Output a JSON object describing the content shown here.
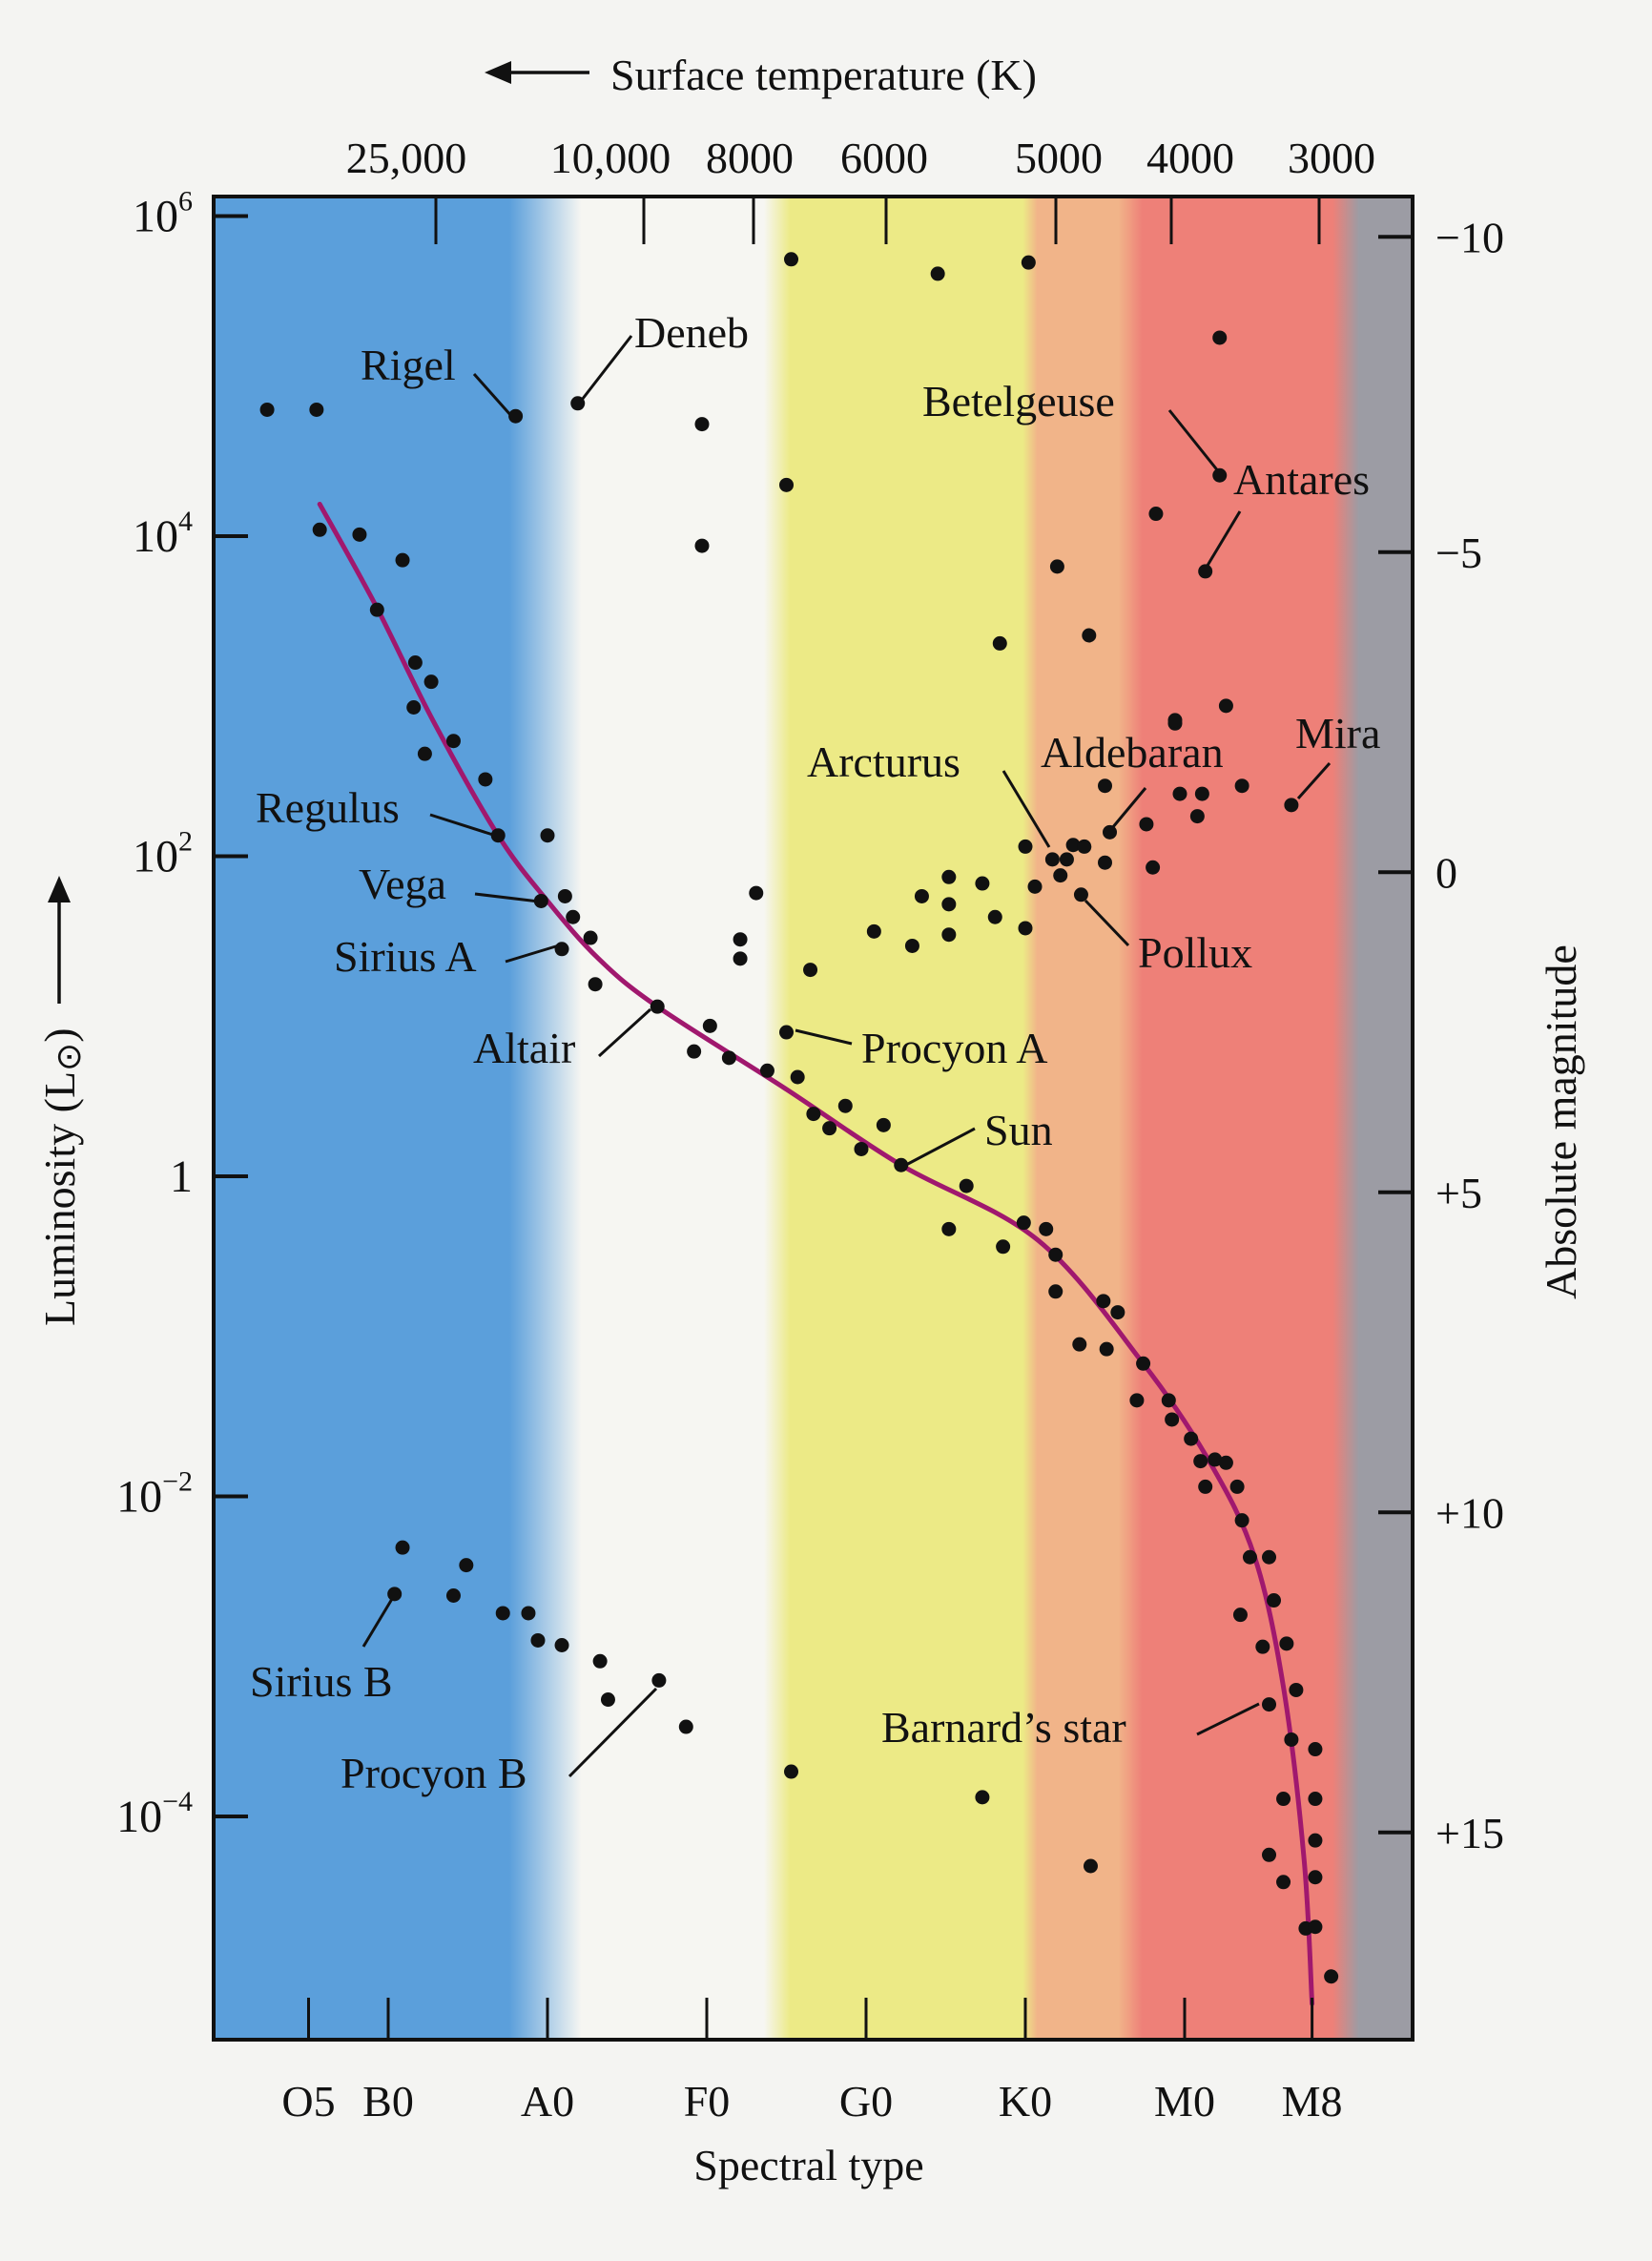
{
  "chart_data": {
    "type": "scatter",
    "title": "",
    "top_axis": {
      "label": "Surface temperature (K)",
      "arrow": "left-arrow",
      "ticks": [
        {
          "label": "25,000",
          "s": 28.2
        },
        {
          "label": "10,000",
          "s": 41.3
        },
        {
          "label": "8000",
          "s": 48.2
        },
        {
          "label": "6000",
          "s": 56.5
        },
        {
          "label": "5000",
          "s": 67.2
        },
        {
          "label": "4000",
          "s": 74.4
        },
        {
          "label": "3000",
          "s": 83.6
        }
      ]
    },
    "xlabel": "Spectral type",
    "x_ticks": [
      {
        "label": "O5",
        "s": 5
      },
      {
        "label": "B0",
        "s": 10
      },
      {
        "label": "A0",
        "s": 20
      },
      {
        "label": "F0",
        "s": 30
      },
      {
        "label": "G0",
        "s": 40
      },
      {
        "label": "K0",
        "s": 50
      },
      {
        "label": "M0",
        "s": 60
      },
      {
        "label": "M8",
        "s": 68
      }
    ],
    "xlim": [
      -1.9,
      73.5
    ],
    "ylabel": "Luminosity (L",
    "ylabel_symbol": "⊙",
    "ylabel_close": ")",
    "ylabel_arrow": "up-arrow",
    "y_scale": "log10",
    "ylim": [
      -5.4,
      6.13
    ],
    "y_ticks": [
      {
        "base": "10",
        "exp": "6",
        "log": 6
      },
      {
        "base": "10",
        "exp": "4",
        "log": 4
      },
      {
        "base": "10",
        "exp": "2",
        "log": 2
      },
      {
        "base": "1",
        "exp": "",
        "log": 0
      },
      {
        "base": "10",
        "exp": "−2",
        "log": -2
      },
      {
        "base": "10",
        "exp": "−4",
        "log": -4
      }
    ],
    "y2label": "Absolute magnitude",
    "y2_ticks": [
      {
        "label": "−10",
        "log": 5.9
      },
      {
        "label": "−5",
        "log": 3.9
      },
      {
        "label": "0",
        "log": 1.9
      },
      {
        "label": "+5",
        "log": -0.1
      },
      {
        "label": "+10",
        "log": -2.1
      },
      {
        "label": "+15",
        "log": -4.1
      }
    ],
    "color_bands": [
      {
        "from": -5.5,
        "to": 19.5,
        "color": "#5b9fdb"
      },
      {
        "from": 34.5,
        "to": 50.3,
        "color": "#ecea86"
      },
      {
        "from": 50.3,
        "to": 56.6,
        "color": "#f1b489"
      },
      {
        "from": 56.6,
        "to": 70.2,
        "color": "#ee8078"
      },
      {
        "from": 70.2,
        "to": 73.5,
        "color": "#9c9ca4"
      }
    ],
    "main_sequence_curve": [
      [
        5.7,
        4.2
      ],
      [
        9.2,
        3.57
      ],
      [
        12.8,
        2.85
      ],
      [
        16.9,
        2.13
      ],
      [
        20.0,
        1.72
      ],
      [
        23.2,
        1.36
      ],
      [
        26.9,
        1.06
      ],
      [
        34.9,
        0.55
      ],
      [
        42.2,
        0.07
      ],
      [
        50.8,
        -0.4
      ],
      [
        57.4,
        -1.17
      ],
      [
        61.6,
        -1.79
      ],
      [
        64.4,
        -2.38
      ],
      [
        66.2,
        -3.19
      ],
      [
        67.5,
        -4.27
      ],
      [
        68.0,
        -5.17
      ]
    ],
    "curve_color": "#a0186e",
    "points": [
      [
        2.4,
        4.79
      ],
      [
        5.5,
        4.79
      ],
      [
        18.0,
        4.75
      ],
      [
        21.9,
        4.83
      ],
      [
        29.7,
        4.7
      ],
      [
        35.3,
        5.73
      ],
      [
        44.5,
        5.64
      ],
      [
        50.2,
        5.71
      ],
      [
        62.2,
        5.24
      ],
      [
        35.0,
        4.32
      ],
      [
        62.2,
        4.38
      ],
      [
        29.7,
        3.94
      ],
      [
        58.2,
        4.14
      ],
      [
        61.3,
        3.78
      ],
      [
        52.0,
        3.81
      ],
      [
        48.4,
        3.33
      ],
      [
        54.0,
        3.38
      ],
      [
        59.4,
        2.83
      ],
      [
        62.6,
        2.94
      ],
      [
        5.7,
        4.04
      ],
      [
        8.2,
        4.01
      ],
      [
        10.9,
        3.85
      ],
      [
        9.3,
        3.54
      ],
      [
        11.7,
        3.21
      ],
      [
        12.7,
        3.09
      ],
      [
        11.6,
        2.93
      ],
      [
        12.3,
        2.64
      ],
      [
        14.1,
        2.72
      ],
      [
        16.1,
        2.48
      ],
      [
        16.9,
        2.13
      ],
      [
        20.0,
        2.13
      ],
      [
        19.6,
        1.72
      ],
      [
        21.1,
        1.75
      ],
      [
        21.6,
        1.62
      ],
      [
        22.7,
        1.49
      ],
      [
        20.9,
        1.42
      ],
      [
        23.0,
        1.2
      ],
      [
        26.9,
        1.06
      ],
      [
        30.2,
        0.94
      ],
      [
        29.2,
        0.78
      ],
      [
        31.4,
        0.74
      ],
      [
        33.8,
        0.66
      ],
      [
        35.0,
        0.9
      ],
      [
        35.7,
        0.62
      ],
      [
        36.7,
        0.39
      ],
      [
        37.7,
        0.3
      ],
      [
        38.7,
        0.44
      ],
      [
        39.7,
        0.17
      ],
      [
        41.1,
        0.32
      ],
      [
        42.2,
        0.07
      ],
      [
        46.3,
        -0.06
      ],
      [
        45.2,
        -0.33
      ],
      [
        48.6,
        -0.44
      ],
      [
        49.9,
        -0.29
      ],
      [
        51.3,
        -0.33
      ],
      [
        51.9,
        -0.49
      ],
      [
        51.9,
        -0.72
      ],
      [
        53.4,
        -1.05
      ],
      [
        54.9,
        -0.78
      ],
      [
        55.1,
        -1.08
      ],
      [
        55.8,
        -0.85
      ],
      [
        57.4,
        -1.17
      ],
      [
        57.0,
        -1.4
      ],
      [
        59.0,
        -1.4
      ],
      [
        59.2,
        -1.52
      ],
      [
        60.4,
        -1.64
      ],
      [
        61.0,
        -1.78
      ],
      [
        61.9,
        -1.77
      ],
      [
        61.3,
        -1.94
      ],
      [
        62.6,
        -1.79
      ],
      [
        63.3,
        -1.94
      ],
      [
        63.6,
        -2.15
      ],
      [
        64.1,
        -2.38
      ],
      [
        65.3,
        -2.38
      ],
      [
        63.5,
        -2.74
      ],
      [
        65.6,
        -2.65
      ],
      [
        64.9,
        -2.94
      ],
      [
        66.4,
        -2.92
      ],
      [
        67.0,
        -3.21
      ],
      [
        65.3,
        -3.3
      ],
      [
        66.7,
        -3.52
      ],
      [
        68.2,
        -3.58
      ],
      [
        66.2,
        -3.89
      ],
      [
        68.2,
        -3.89
      ],
      [
        68.2,
        -4.15
      ],
      [
        65.3,
        -4.24
      ],
      [
        68.2,
        -4.38
      ],
      [
        66.2,
        -4.41
      ],
      [
        67.6,
        -4.7
      ],
      [
        68.2,
        -4.69
      ],
      [
        69.2,
        -5.0
      ],
      [
        32.1,
        1.48
      ],
      [
        32.1,
        1.36
      ],
      [
        33.1,
        1.77
      ],
      [
        36.5,
        1.29
      ],
      [
        40.5,
        1.53
      ],
      [
        42.9,
        1.44
      ],
      [
        43.5,
        1.75
      ],
      [
        45.2,
        1.87
      ],
      [
        45.2,
        1.7
      ],
      [
        45.2,
        1.51
      ],
      [
        47.3,
        1.83
      ],
      [
        48.1,
        1.62
      ],
      [
        50.0,
        1.55
      ],
      [
        50.6,
        1.81
      ],
      [
        50.0,
        2.06
      ],
      [
        51.7,
        1.98
      ],
      [
        52.6,
        1.98
      ],
      [
        52.2,
        1.88
      ],
      [
        53.0,
        2.07
      ],
      [
        53.5,
        1.76
      ],
      [
        53.7,
        2.06
      ],
      [
        55.0,
        1.96
      ],
      [
        55.3,
        2.15
      ],
      [
        55.0,
        2.44
      ],
      [
        57.6,
        2.2
      ],
      [
        58.0,
        1.93
      ],
      [
        59.4,
        2.85
      ],
      [
        59.7,
        2.39
      ],
      [
        60.8,
        2.25
      ],
      [
        61.1,
        2.39
      ],
      [
        63.6,
        2.44
      ],
      [
        66.7,
        2.32
      ],
      [
        10.9,
        -2.32
      ],
      [
        10.4,
        -2.61
      ],
      [
        14.9,
        -2.43
      ],
      [
        14.1,
        -2.62
      ],
      [
        17.2,
        -2.73
      ],
      [
        18.8,
        -2.73
      ],
      [
        19.4,
        -2.9
      ],
      [
        20.9,
        -2.93
      ],
      [
        23.3,
        -3.03
      ],
      [
        23.8,
        -3.27
      ],
      [
        27.0,
        -3.15
      ],
      [
        28.7,
        -3.44
      ],
      [
        35.3,
        -3.72
      ],
      [
        47.3,
        -3.88
      ],
      [
        54.1,
        -4.31
      ]
    ],
    "named_stars": [
      {
        "name": "Rigel",
        "s": 18.0,
        "logL": 4.75
      },
      {
        "name": "Deneb",
        "s": 21.9,
        "logL": 4.83
      },
      {
        "name": "Betelgeuse",
        "s": 62.2,
        "logL": 4.38
      },
      {
        "name": "Antares",
        "s": 61.3,
        "logL": 3.78
      },
      {
        "name": "Regulus",
        "s": 16.9,
        "logL": 2.13
      },
      {
        "name": "Vega",
        "s": 19.6,
        "logL": 1.72
      },
      {
        "name": "Sirius A",
        "s": 20.9,
        "logL": 1.42
      },
      {
        "name": "Altair",
        "s": 26.9,
        "logL": 1.06
      },
      {
        "name": "Procyon A",
        "s": 35.0,
        "logL": 0.9
      },
      {
        "name": "Sun",
        "s": 42.2,
        "logL": 0.07
      },
      {
        "name": "Arcturus",
        "s": 51.7,
        "logL": 1.98
      },
      {
        "name": "Aldebaran",
        "s": 55.3,
        "logL": 2.15
      },
      {
        "name": "Mira",
        "s": 66.7,
        "logL": 2.32
      },
      {
        "name": "Pollux",
        "s": 53.5,
        "logL": 1.76
      },
      {
        "name": "Barnard’s star",
        "s": 65.3,
        "logL": -3.3
      },
      {
        "name": "Sirius B",
        "s": 10.4,
        "logL": -2.61
      },
      {
        "name": "Procyon B",
        "s": 27.0,
        "logL": -3.15
      }
    ]
  }
}
